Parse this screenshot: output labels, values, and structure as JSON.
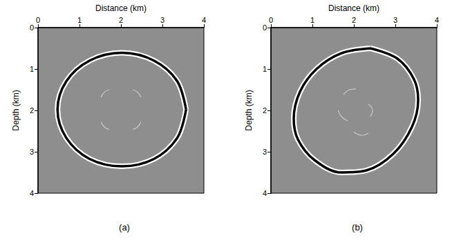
{
  "chart_data": [
    {
      "type": "line",
      "title": "(a)",
      "xlabel": "Distance (km)",
      "ylabel": "Depth (km)",
      "xlim": [
        0,
        4
      ],
      "ylim": [
        4,
        0
      ],
      "xticks": [
        0,
        1,
        2,
        3,
        4
      ],
      "yticks": [
        0,
        1,
        2,
        3,
        4
      ],
      "grid": false,
      "series": [
        {
          "color": "#000000",
          "x": [
            3.57,
            3.36,
            2.8,
            2.02,
            1.24,
            0.68,
            0.47,
            0.68,
            1.24,
            2.02,
            2.8,
            3.36,
            3.57
          ],
          "values": [
            1.98,
            1.3,
            0.8,
            0.61,
            0.8,
            1.3,
            1.98,
            2.66,
            3.17,
            3.35,
            3.17,
            2.66,
            1.98
          ]
        },
        {
          "color": "#c8c8c8",
          "x": [
            1.52,
            1.6,
            1.72
          ],
          "values": [
            1.68,
            1.56,
            1.5
          ]
        },
        {
          "color": "#c8c8c8",
          "x": [
            2.28,
            2.4,
            2.48
          ],
          "values": [
            1.5,
            1.56,
            1.68
          ]
        },
        {
          "color": "#c8c8c8",
          "x": [
            1.52,
            1.6,
            1.72
          ],
          "values": [
            2.28,
            2.4,
            2.46
          ]
        },
        {
          "color": "#c8c8c8",
          "x": [
            2.28,
            2.4,
            2.48
          ],
          "values": [
            2.46,
            2.4,
            2.28
          ]
        }
      ]
    },
    {
      "type": "line",
      "title": "(b)",
      "xlabel": "Distance (km)",
      "ylabel": "Depth (km)",
      "xlim": [
        0,
        4
      ],
      "ylim": [
        4,
        0
      ],
      "xticks": [
        0,
        1,
        2,
        3,
        4
      ],
      "yticks": [
        0,
        1,
        2,
        3,
        4
      ],
      "grid": false,
      "series": [
        {
          "color": "#000000",
          "x": [
            2.4,
            3.05,
            3.45,
            3.55,
            3.4,
            2.95,
            2.3,
            1.7,
            1.05,
            0.65,
            0.55,
            0.7,
            1.1,
            1.7,
            2.4
          ],
          "values": [
            0.5,
            0.75,
            1.25,
            1.75,
            2.4,
            3.05,
            3.45,
            3.5,
            3.2,
            2.7,
            2.2,
            1.55,
            1.0,
            0.62,
            0.5
          ]
        },
        {
          "color": "#c8c8c8",
          "x": [
            1.75,
            1.9,
            2.05
          ],
          "values": [
            1.62,
            1.5,
            1.48
          ]
        },
        {
          "color": "#c8c8c8",
          "x": [
            2.35,
            2.45,
            2.4
          ],
          "values": [
            1.85,
            2.0,
            2.15
          ]
        },
        {
          "color": "#c8c8c8",
          "x": [
            1.62,
            1.7,
            1.85
          ],
          "values": [
            2.0,
            2.15,
            2.25
          ]
        },
        {
          "color": "#c8c8c8",
          "x": [
            2.0,
            2.2,
            2.35
          ],
          "values": [
            2.52,
            2.6,
            2.55
          ]
        }
      ]
    }
  ]
}
